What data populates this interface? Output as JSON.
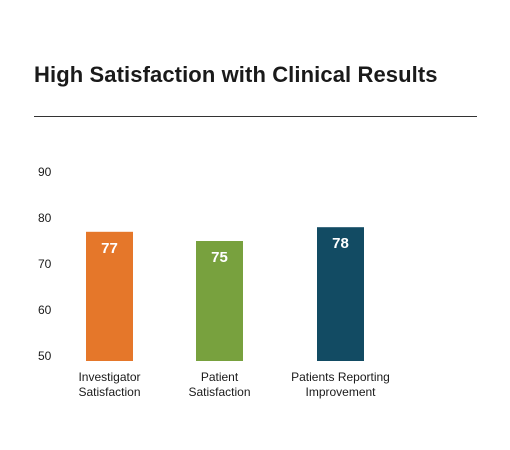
{
  "chart_data": {
    "type": "bar",
    "title": "High Satisfaction with Clinical Results",
    "xlabel": "",
    "ylabel": "",
    "ylim": [
      50,
      90
    ],
    "yticks": [
      50,
      60,
      70,
      80,
      90
    ],
    "grid": false,
    "legend": "none",
    "categories": [
      [
        "Investigator",
        "Satisfaction"
      ],
      [
        "Patient",
        "Satisfaction"
      ],
      [
        "Patients Reporting",
        "Improvement"
      ]
    ],
    "values": [
      77,
      75,
      78
    ],
    "value_labels": [
      "77",
      "75",
      "78"
    ],
    "colors": [
      "#E5772A",
      "#78A13E",
      "#124B63"
    ]
  }
}
